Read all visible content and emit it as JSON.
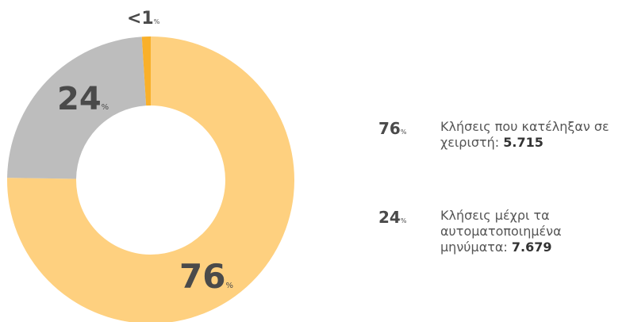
{
  "chart_data": {
    "type": "donut",
    "categories": [
      "Κλήσεις που κατέληξαν σε χειριστή:",
      "Κλήσεις μέχρι τα αυτοματοποιημένα μηνύματα:",
      null
    ],
    "values": [
      76,
      24,
      1
    ],
    "value_labels": [
      "76",
      "24",
      "<1"
    ],
    "unit": "%",
    "colors": [
      "#fed07f",
      "#bdbdbd",
      "#f9b02a"
    ],
    "counts": [
      {
        "value": 5715,
        "label": "5.715"
      },
      {
        "value": 7679,
        "label": "7.679"
      },
      null
    ]
  }
}
